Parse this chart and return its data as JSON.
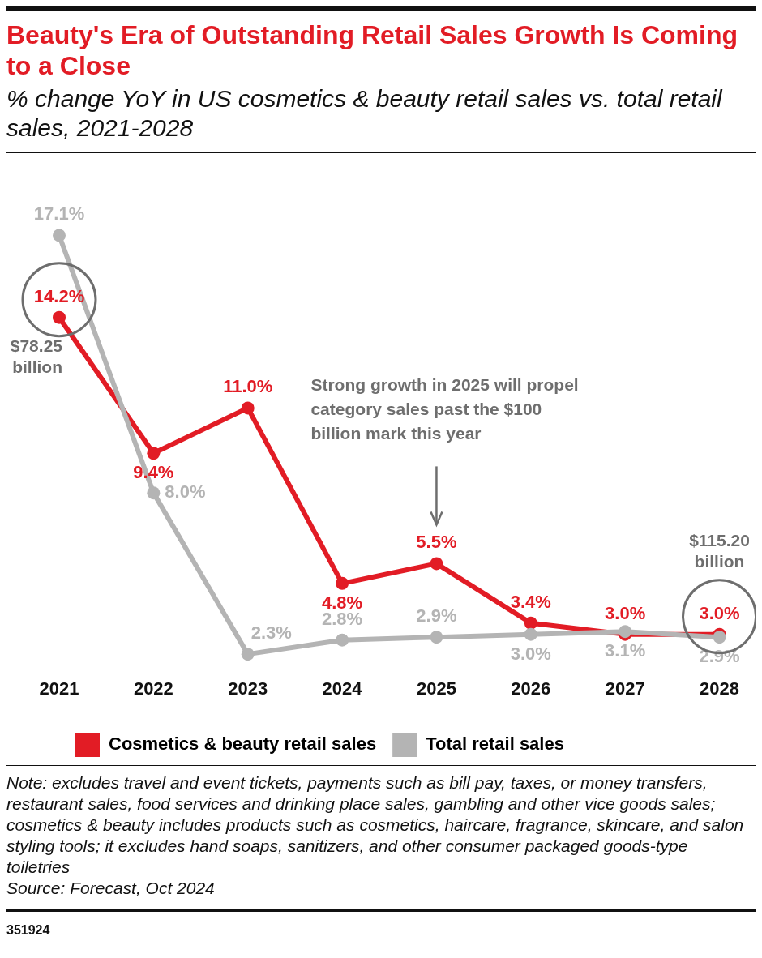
{
  "chart_data": {
    "type": "line",
    "title": "Beauty's Era of Outstanding Retail Sales Growth Is Coming to a Close",
    "subtitle": "% change YoY in US cosmetics & beauty retail sales vs. total retail sales, 2021-2028",
    "categories": [
      "2021",
      "2022",
      "2023",
      "2024",
      "2025",
      "2026",
      "2027",
      "2028"
    ],
    "series": [
      {
        "name": "Cosmetics & beauty retail sales",
        "color": "#e21c25",
        "values": [
          14.2,
          9.4,
          11.0,
          4.8,
          5.5,
          3.4,
          3.0,
          3.0
        ],
        "value_labels": [
          "14.2%",
          "9.4%",
          "11.0%",
          "4.8%",
          "5.5%",
          "3.4%",
          "3.0%",
          "3.0%"
        ]
      },
      {
        "name": "Total retail sales",
        "color": "#b4b4b4",
        "values": [
          17.1,
          8.0,
          2.3,
          2.8,
          2.9,
          3.0,
          3.1,
          2.9
        ],
        "value_labels": [
          "17.1%",
          "8.0%",
          "2.3%",
          "2.8%",
          "2.9%",
          "3.0%",
          "3.1%",
          "2.9%"
        ]
      }
    ],
    "marker": "circle",
    "legend": "bottom",
    "grid": false,
    "annotations": [
      {
        "text": "$78.25 billion",
        "x": "2021",
        "y": 14.2
      },
      "Strong growth in 2025 will propel category sales past the $100 billion mark this year",
      "$115.20 billion",
      "Note: excludes travel and event tickets, payments such as bill pay, taxes, or money transfers, restaurant sales, food services and drinking place sales, gambling and other vice goods sales; cosmetics & beauty includes products such as cosmetics, haircare, fragrance, skincare, and salon styling tools; it excludes hand soaps, sanitizers, and other consumer packaged goods-type toiletries",
      "Source: Forecast, Oct 2024",
      "351924"
    ]
  }
}
